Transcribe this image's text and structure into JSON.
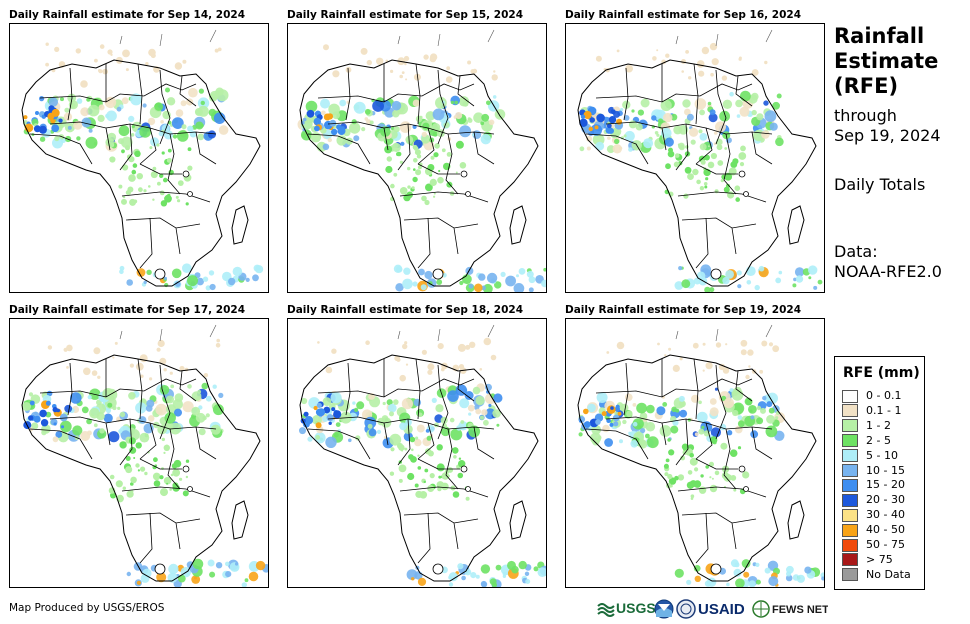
{
  "panels": [
    {
      "title": "Daily Rainfall estimate for Sep 14, 2024"
    },
    {
      "title": "Daily Rainfall estimate for Sep 15, 2024"
    },
    {
      "title": "Daily Rainfall estimate for Sep 16, 2024"
    },
    {
      "title": "Daily Rainfall estimate for Sep 17, 2024"
    },
    {
      "title": "Daily Rainfall estimate for Sep 18, 2024"
    },
    {
      "title": "Daily Rainfall estimate for Sep 19, 2024"
    }
  ],
  "side": {
    "title_line1": "Rainfall",
    "title_line2": "Estimate",
    "title_line3": "(RFE)",
    "through_line1": "through",
    "through_line2": "Sep 19, 2024",
    "totals": "Daily Totals",
    "data_line1": "Data:",
    "data_line2": "NOAA-RFE2.0"
  },
  "legend": {
    "title": "RFE (mm)",
    "items": [
      {
        "label": "0 - 0.1",
        "color": "#ffffff"
      },
      {
        "label": "0.1 - 1",
        "color": "#f2e2c6"
      },
      {
        "label": "1 - 2",
        "color": "#b6f0a6"
      },
      {
        "label": "2 - 5",
        "color": "#6ee264"
      },
      {
        "label": "5 - 10",
        "color": "#aeeef8"
      },
      {
        "label": "10 - 15",
        "color": "#78b4f0"
      },
      {
        "label": "15 - 20",
        "color": "#3e8ef0"
      },
      {
        "label": "20 - 30",
        "color": "#1c58dc"
      },
      {
        "label": "30 - 40",
        "color": "#fce286"
      },
      {
        "label": "40 - 50",
        "color": "#f8a418"
      },
      {
        "label": "50 - 75",
        "color": "#f04a0c"
      },
      {
        "label": "> 75",
        "color": "#a81818"
      },
      {
        "label": "No Data",
        "color": "#9a9a9a"
      }
    ]
  },
  "credit": "Map Produced by USGS/EROS",
  "logos": {
    "usgs": "USGS",
    "usaid": "USAID",
    "fews": "FEWS NET"
  }
}
